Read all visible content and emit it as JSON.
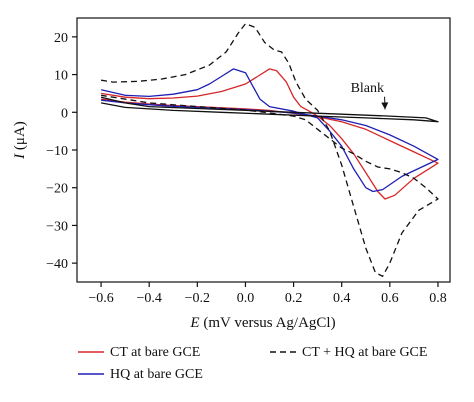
{
  "chart_data": {
    "type": "line",
    "xlabel_italic": "E",
    "xlabel_rest": " (mV versus Ag/AgCl)",
    "ylabel_italic": "I",
    "ylabel_rest": " (μA)",
    "xlim": [
      -0.7,
      0.85
    ],
    "ylim": [
      -45,
      25
    ],
    "xticks": [
      -0.6,
      -0.4,
      -0.2,
      0.0,
      0.2,
      0.4,
      0.6,
      0.8
    ],
    "xtick_labels": [
      "−0.6",
      "−0.4",
      "−0.2",
      "0.0",
      "0.2",
      "0.4",
      "0.6",
      "0.8"
    ],
    "yticks": [
      20,
      10,
      0,
      -10,
      -20,
      -30,
      -40
    ],
    "ytick_labels": [
      "20",
      "10",
      "0",
      "−10",
      "−20",
      "−30",
      "−40"
    ],
    "annotation": {
      "text": "Blank",
      "x": 0.52,
      "y": 6.5,
      "arrow_to": [
        0.58,
        0.2
      ]
    },
    "series": [
      {
        "name": "CT at bare GCE",
        "color": "#d62728",
        "dash": "solid",
        "points": [
          [
            -0.6,
            5.0
          ],
          [
            -0.5,
            4.0
          ],
          [
            -0.4,
            3.6
          ],
          [
            -0.3,
            3.8
          ],
          [
            -0.2,
            4.3
          ],
          [
            -0.1,
            5.5
          ],
          [
            0.0,
            7.5
          ],
          [
            0.05,
            9.5
          ],
          [
            0.1,
            11.5
          ],
          [
            0.13,
            11.0
          ],
          [
            0.17,
            8.0
          ],
          [
            0.2,
            4.0
          ],
          [
            0.23,
            1.5
          ],
          [
            0.26,
            0.5
          ],
          [
            0.3,
            -1.0
          ],
          [
            0.35,
            -3.5
          ],
          [
            0.4,
            -7.0
          ],
          [
            0.45,
            -11.0
          ],
          [
            0.5,
            -16.0
          ],
          [
            0.55,
            -21.0
          ],
          [
            0.58,
            -23.0
          ],
          [
            0.62,
            -22.0
          ],
          [
            0.7,
            -17.5
          ],
          [
            0.8,
            -13.5
          ],
          [
            0.8,
            -13.5
          ],
          [
            0.7,
            -10.5
          ],
          [
            0.6,
            -7.5
          ],
          [
            0.5,
            -4.5
          ],
          [
            0.4,
            -2.5
          ],
          [
            0.3,
            -1.2
          ],
          [
            0.2,
            -0.3
          ],
          [
            0.1,
            0.5
          ],
          [
            0.0,
            0.9
          ],
          [
            -0.1,
            1.2
          ],
          [
            -0.2,
            1.5
          ],
          [
            -0.3,
            1.8
          ],
          [
            -0.4,
            2.2
          ],
          [
            -0.5,
            2.7
          ],
          [
            -0.6,
            3.5
          ]
        ]
      },
      {
        "name": "HQ at bare GCE",
        "color": "#1f1fb4",
        "dash": "solid",
        "points": [
          [
            -0.6,
            6.0
          ],
          [
            -0.5,
            4.5
          ],
          [
            -0.4,
            4.2
          ],
          [
            -0.3,
            4.8
          ],
          [
            -0.2,
            6.0
          ],
          [
            -0.15,
            7.5
          ],
          [
            -0.1,
            9.5
          ],
          [
            -0.05,
            11.5
          ],
          [
            0.0,
            10.5
          ],
          [
            0.03,
            7.0
          ],
          [
            0.06,
            3.5
          ],
          [
            0.1,
            1.5
          ],
          [
            0.2,
            0.3
          ],
          [
            0.3,
            -1.5
          ],
          [
            0.35,
            -5.0
          ],
          [
            0.4,
            -9.0
          ],
          [
            0.45,
            -15.0
          ],
          [
            0.5,
            -20.0
          ],
          [
            0.53,
            -21.0
          ],
          [
            0.57,
            -20.5
          ],
          [
            0.65,
            -17.0
          ],
          [
            0.8,
            -12.5
          ],
          [
            0.8,
            -12.5
          ],
          [
            0.7,
            -9.0
          ],
          [
            0.6,
            -6.0
          ],
          [
            0.5,
            -3.5
          ],
          [
            0.4,
            -2.0
          ],
          [
            0.3,
            -1.0
          ],
          [
            0.2,
            -0.2
          ],
          [
            0.1,
            0.3
          ],
          [
            0.0,
            0.7
          ],
          [
            -0.1,
            1.0
          ],
          [
            -0.2,
            1.3
          ],
          [
            -0.3,
            1.6
          ],
          [
            -0.4,
            2.0
          ],
          [
            -0.5,
            2.5
          ],
          [
            -0.6,
            3.2
          ]
        ]
      },
      {
        "name": "CT + HQ at bare GCE",
        "color": "#111111",
        "dash": "dashed",
        "points": [
          [
            -0.6,
            8.5
          ],
          [
            -0.55,
            8.0
          ],
          [
            -0.45,
            8.2
          ],
          [
            -0.35,
            8.8
          ],
          [
            -0.25,
            10.0
          ],
          [
            -0.15,
            12.5
          ],
          [
            -0.08,
            16.0
          ],
          [
            -0.03,
            21.0
          ],
          [
            0.0,
            23.5
          ],
          [
            0.04,
            22.5
          ],
          [
            0.08,
            18.5
          ],
          [
            0.12,
            16.5
          ],
          [
            0.15,
            16.0
          ],
          [
            0.18,
            13.0
          ],
          [
            0.21,
            8.0
          ],
          [
            0.25,
            3.5
          ],
          [
            0.3,
            0.5
          ],
          [
            0.35,
            -5.0
          ],
          [
            0.4,
            -14.0
          ],
          [
            0.45,
            -25.0
          ],
          [
            0.5,
            -36.0
          ],
          [
            0.54,
            -42.5
          ],
          [
            0.57,
            -43.5
          ],
          [
            0.6,
            -40.0
          ],
          [
            0.65,
            -32.0
          ],
          [
            0.72,
            -26.0
          ],
          [
            0.8,
            -23.0
          ],
          [
            0.75,
            -20.0
          ],
          [
            0.7,
            -17.5
          ],
          [
            0.65,
            -16.0
          ],
          [
            0.6,
            -15.0
          ],
          [
            0.55,
            -14.5
          ],
          [
            0.5,
            -13.0
          ],
          [
            0.45,
            -11.0
          ],
          [
            0.4,
            -9.5
          ],
          [
            0.35,
            -7.0
          ],
          [
            0.3,
            -4.5
          ],
          [
            0.25,
            -2.0
          ],
          [
            0.2,
            -1.0
          ],
          [
            0.1,
            -0.2
          ],
          [
            0.0,
            0.6
          ],
          [
            -0.2,
            1.5
          ],
          [
            -0.4,
            2.5
          ],
          [
            -0.6,
            4.5
          ]
        ]
      },
      {
        "name": "Blank",
        "color": "#111111",
        "dash": "solid",
        "legend": false,
        "points": [
          [
            -0.6,
            4.0
          ],
          [
            -0.5,
            2.5
          ],
          [
            -0.4,
            1.5
          ],
          [
            -0.2,
            1.0
          ],
          [
            0.0,
            0.5
          ],
          [
            0.2,
            0.0
          ],
          [
            0.4,
            -0.5
          ],
          [
            0.6,
            -1.0
          ],
          [
            0.75,
            -1.5
          ],
          [
            0.8,
            -2.5
          ],
          [
            0.7,
            -2.0
          ],
          [
            0.5,
            -1.5
          ],
          [
            0.3,
            -1.0
          ],
          [
            0.1,
            -0.5
          ],
          [
            -0.1,
            0.0
          ],
          [
            -0.3,
            0.5
          ],
          [
            -0.5,
            1.3
          ],
          [
            -0.6,
            2.5
          ]
        ]
      }
    ],
    "legend_labels": [
      "CT at bare GCE",
      "HQ at bare GCE",
      "CT + HQ at bare GCE"
    ]
  }
}
